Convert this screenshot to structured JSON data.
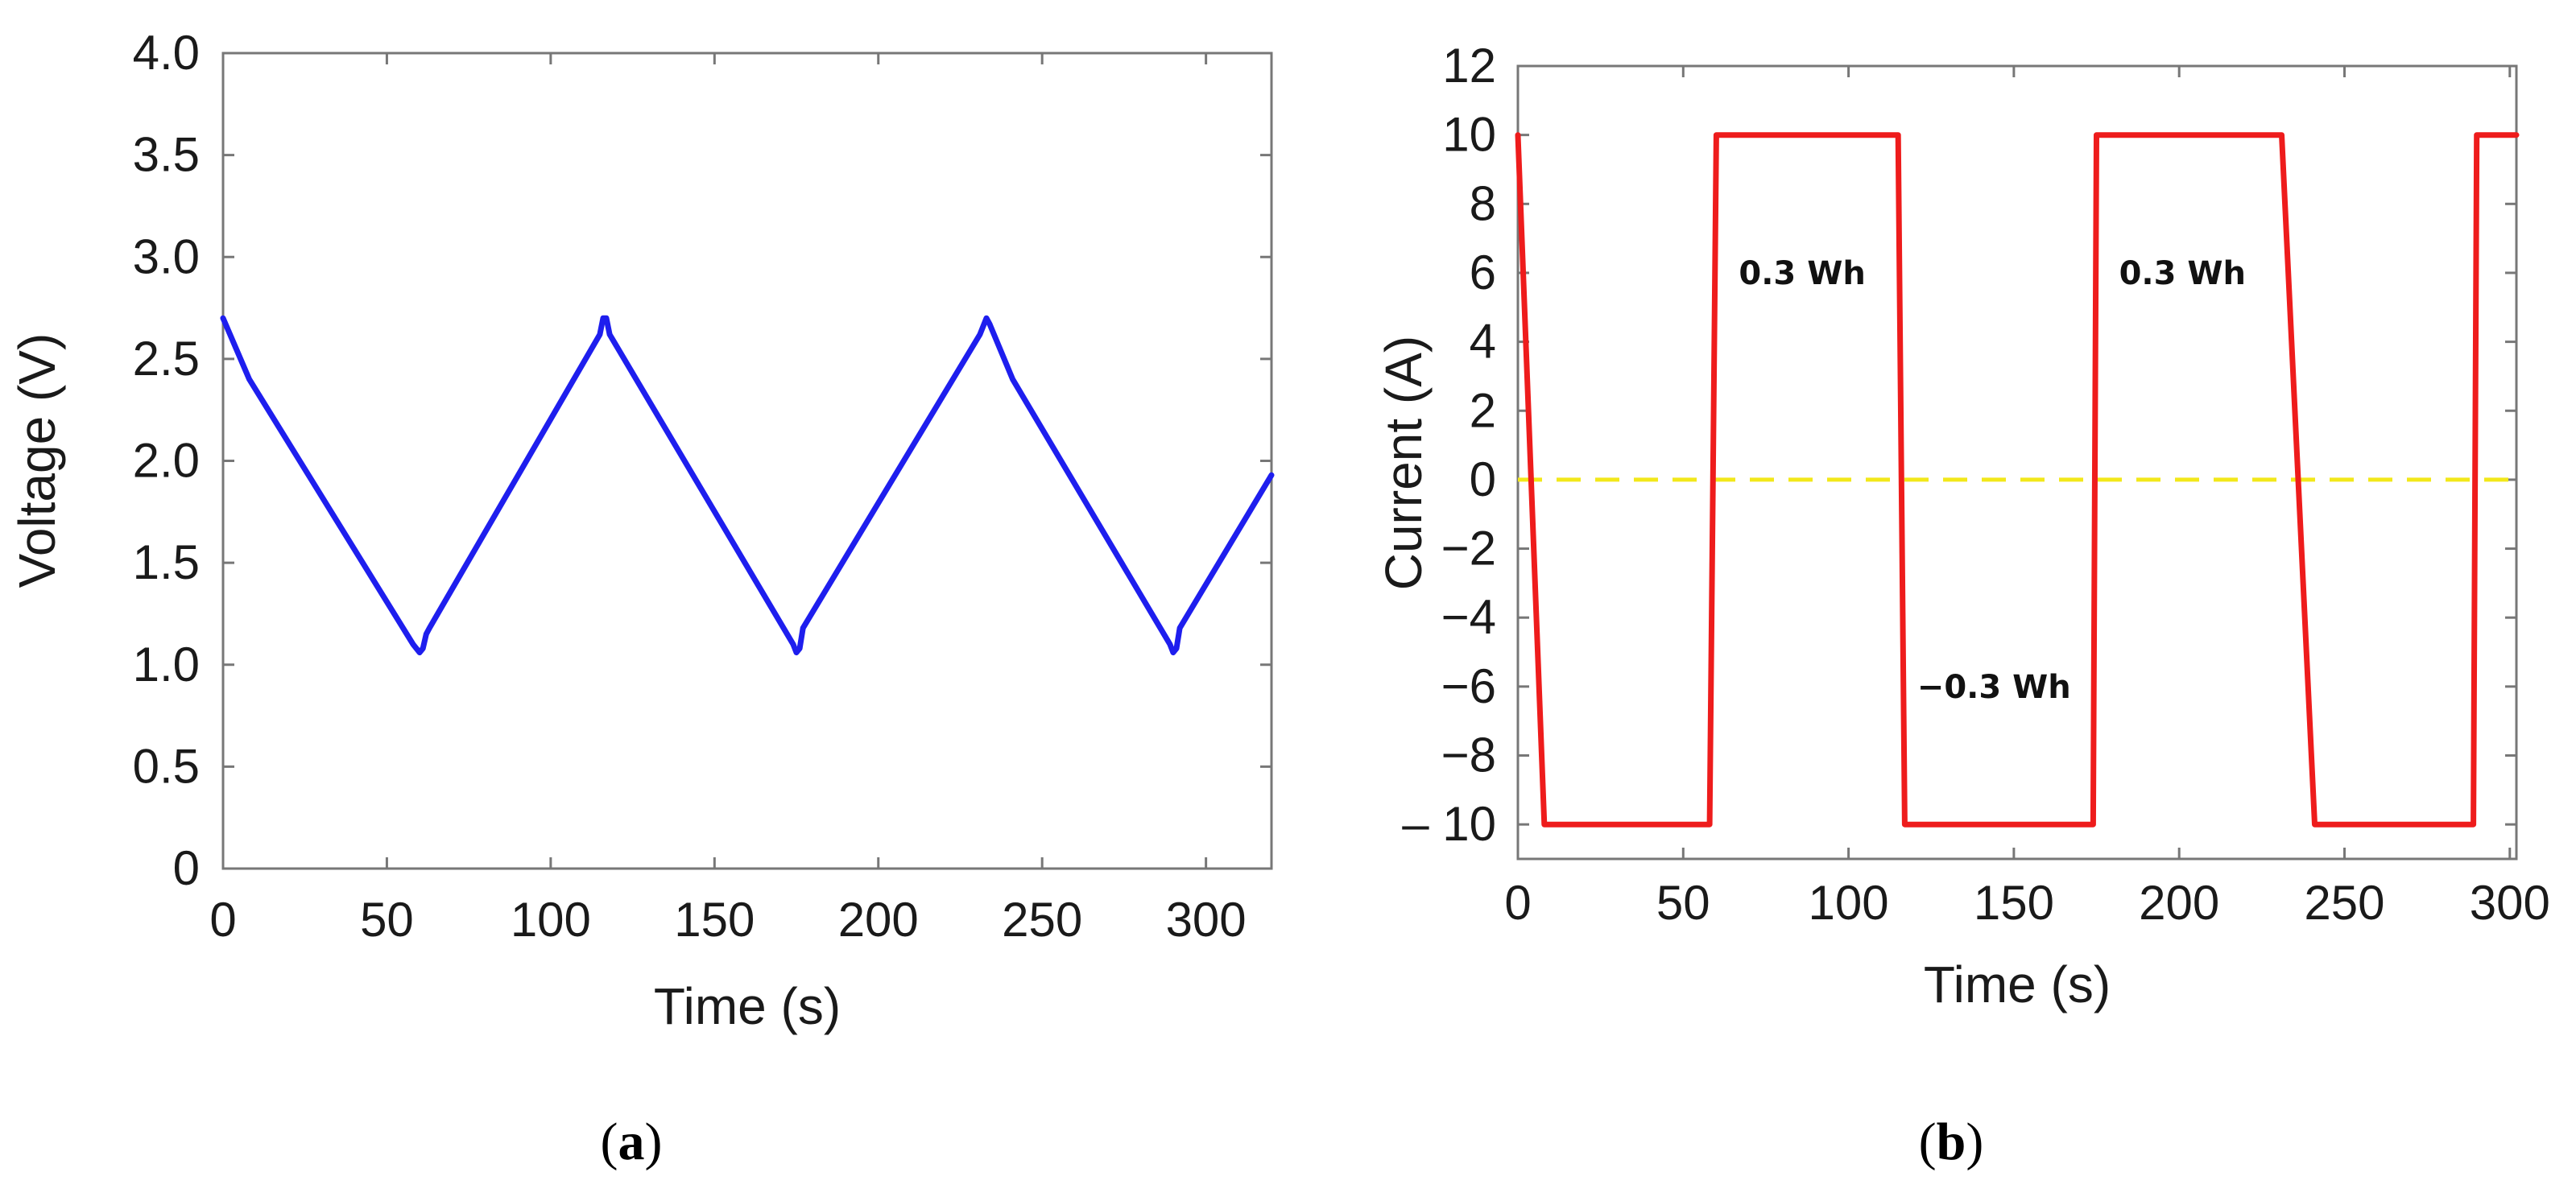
{
  "chart_data": [
    {
      "type": "line",
      "panel": "a",
      "title": "",
      "xlabel": "Time (s)",
      "ylabel": "Voltage (V)",
      "xlim": [
        0,
        320
      ],
      "ylim": [
        0,
        4.0
      ],
      "xticks": [
        0,
        50,
        100,
        150,
        200,
        250,
        300
      ],
      "yticks": [
        0,
        0.5,
        1.0,
        1.5,
        2.0,
        2.5,
        3.0,
        3.5,
        4.0
      ],
      "ytick_labels": [
        "0",
        "0.5",
        "1.0",
        "1.5",
        "2.0",
        "2.5",
        "3.0",
        "3.5",
        "4.0"
      ],
      "grid": false,
      "series": [
        {
          "color": "#1e1eee",
          "x": [
            0,
            4,
            8,
            58,
            60,
            61,
            62,
            63,
            115,
            116,
            117,
            118,
            174,
            175,
            176,
            177,
            231,
            233,
            234,
            241,
            289,
            290,
            291,
            292,
            320
          ],
          "y": [
            2.7,
            2.55,
            2.4,
            1.1,
            1.06,
            1.08,
            1.15,
            1.18,
            2.62,
            2.7,
            2.7,
            2.62,
            1.1,
            1.06,
            1.08,
            1.18,
            2.62,
            2.7,
            2.67,
            2.4,
            1.1,
            1.06,
            1.08,
            1.18,
            1.93
          ]
        }
      ]
    },
    {
      "type": "line",
      "panel": "b",
      "title": "",
      "xlabel": "Time (s)",
      "ylabel": "Current (A)",
      "xlim": [
        0,
        302
      ],
      "ylim": [
        -11,
        12
      ],
      "xticks": [
        0,
        50,
        100,
        150,
        200,
        250,
        300
      ],
      "yticks": [
        12,
        10,
        8,
        6,
        4,
        2,
        0,
        -2,
        -4,
        -6,
        -8,
        -10
      ],
      "ytick_labels": [
        "12",
        "10",
        "8",
        "6",
        "4",
        "2",
        "0",
        "−2",
        "−4",
        "−6",
        "−8",
        "– 10"
      ],
      "grid": false,
      "series": [
        {
          "color": "#ee1c1c",
          "x": [
            0,
            8,
            58,
            60,
            115,
            117,
            174,
            175,
            231,
            241,
            289,
            290,
            302
          ],
          "y": [
            10,
            -10,
            -10,
            10,
            10,
            -10,
            -10,
            10,
            10,
            -10,
            -10,
            10,
            10
          ]
        }
      ],
      "reference_lines": [
        {
          "y": 0,
          "color": "#f2e81a",
          "style": "dashed"
        }
      ],
      "annotations": [
        {
          "text": "0.3 Wh",
          "x": 86,
          "y": 6
        },
        {
          "text": "0.3 Wh",
          "x": 201,
          "y": 6
        },
        {
          "text": "−0.3 Wh",
          "x": 144,
          "y": -6
        }
      ]
    }
  ],
  "captions": [
    {
      "open": "(",
      "letter": "a",
      "close": ")"
    },
    {
      "open": "(",
      "letter": "b",
      "close": ")"
    }
  ]
}
